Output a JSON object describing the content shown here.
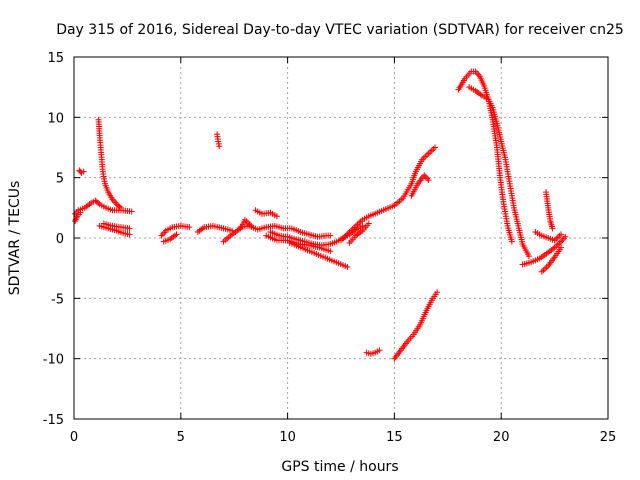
{
  "chart_data": {
    "type": "scatter",
    "title": "Day 315 of 2016, Sidereal Day-to-day VTEC variation (SDTVAR) for receiver cn25",
    "xlabel": "GPS time / hours",
    "ylabel": "SDTVAR / TECUs",
    "xlim": [
      0,
      25
    ],
    "ylim": [
      -15,
      15
    ],
    "xticks": [
      0,
      5,
      10,
      15,
      20,
      25
    ],
    "yticks": [
      -15,
      -10,
      -5,
      0,
      5,
      10,
      15
    ],
    "xtick_labels": [
      "0",
      "5",
      "10",
      "15",
      "20",
      "25"
    ],
    "ytick_labels": [
      "-15",
      "-10",
      "-5",
      "0",
      "5",
      "10",
      "15"
    ],
    "grid": true,
    "marker": "+",
    "color": "#ff0000",
    "segments": [
      {
        "x": [
          0.05,
          0.2,
          0.5,
          0.8,
          1.0,
          1.2,
          1.5,
          1.8,
          2.2,
          2.7
        ],
        "y": [
          2.0,
          2.3,
          2.5,
          2.9,
          3.1,
          2.8,
          2.5,
          2.3,
          2.3,
          2.2
        ]
      },
      {
        "x": [
          0.05,
          0.15,
          0.3
        ],
        "y": [
          1.4,
          1.8,
          2.1
        ]
      },
      {
        "x": [
          0.25,
          0.35,
          0.45
        ],
        "y": [
          5.6,
          5.4,
          5.5
        ]
      },
      {
        "x": [
          1.15,
          1.2,
          1.25,
          1.3,
          1.35,
          1.45,
          1.6,
          1.8,
          2.0,
          2.2
        ],
        "y": [
          9.8,
          8.5,
          7.5,
          6.5,
          5.5,
          4.5,
          3.8,
          3.2,
          2.8,
          2.5
        ]
      },
      {
        "x": [
          1.2,
          1.4,
          1.6,
          1.8,
          2.0,
          2.3,
          2.6
        ],
        "y": [
          1.0,
          0.9,
          0.8,
          0.7,
          0.6,
          0.4,
          0.3
        ]
      },
      {
        "x": [
          1.4,
          1.8,
          2.2,
          2.6
        ],
        "y": [
          1.2,
          1.0,
          0.9,
          0.8
        ]
      },
      {
        "x": [
          4.1,
          4.3,
          4.6,
          5.0,
          5.4
        ],
        "y": [
          0.2,
          0.6,
          0.9,
          1.0,
          0.9
        ]
      },
      {
        "x": [
          4.2,
          4.5,
          4.8
        ],
        "y": [
          -0.3,
          -0.1,
          0.3
        ]
      },
      {
        "x": [
          5.8,
          6.1,
          6.5,
          7.0,
          7.4
        ],
        "y": [
          0.5,
          0.9,
          1.0,
          0.8,
          0.6
        ]
      },
      {
        "x": [
          6.7,
          6.75,
          6.8
        ],
        "y": [
          8.6,
          8.0,
          7.6
        ]
      },
      {
        "x": [
          7.0,
          7.4,
          7.8,
          8.0,
          8.3
        ],
        "y": [
          -0.3,
          0.3,
          0.8,
          1.5,
          1.0
        ]
      },
      {
        "x": [
          7.8,
          8.2,
          8.6,
          9.0,
          9.4,
          9.8,
          10.2,
          10.6,
          11.0,
          11.4,
          11.8,
          12.0
        ],
        "y": [
          0.9,
          1.0,
          0.7,
          0.9,
          1.0,
          0.8,
          0.8,
          0.5,
          0.3,
          0.1,
          0.2,
          0.2
        ]
      },
      {
        "x": [
          9.2,
          9.6,
          10.0,
          10.4,
          10.8,
          11.2,
          11.6,
          12.0,
          12.3,
          12.6,
          12.9,
          13.2,
          13.5
        ],
        "y": [
          0.5,
          0.2,
          0.1,
          -0.1,
          -0.3,
          -0.5,
          -0.6,
          -0.5,
          -0.3,
          0.0,
          0.3,
          0.7,
          1.0
        ]
      },
      {
        "x": [
          9.0,
          9.5,
          10.0,
          10.5,
          11.0,
          11.5,
          12.0
        ],
        "y": [
          0.2,
          -0.2,
          -0.2,
          -0.5,
          -0.6,
          -0.8,
          -1.1
        ]
      },
      {
        "x": [
          8.5,
          8.8,
          9.2,
          9.5
        ],
        "y": [
          2.3,
          2.0,
          2.1,
          1.8
        ]
      },
      {
        "x": [
          10.1,
          12.8
        ],
        "y": [
          -0.4,
          -2.4
        ]
      },
      {
        "x": [
          12.5,
          12.9,
          13.2,
          13.5,
          13.8,
          14.2,
          14.6,
          15.0,
          15.4,
          15.8,
          16.0,
          16.3,
          16.6,
          16.9
        ],
        "y": [
          -0.2,
          0.5,
          1.0,
          1.5,
          1.8,
          2.1,
          2.4,
          2.7,
          3.3,
          4.5,
          5.5,
          6.5,
          7.0,
          7.5
        ]
      },
      {
        "x": [
          12.9,
          13.2,
          13.5,
          13.8
        ],
        "y": [
          -0.4,
          0.2,
          0.6,
          1.2
        ]
      },
      {
        "x": [
          15.8,
          16.1,
          16.4,
          16.6
        ],
        "y": [
          3.5,
          4.5,
          5.2,
          4.8
        ]
      },
      {
        "x": [
          13.7,
          13.9,
          14.1,
          14.3
        ],
        "y": [
          -9.5,
          -9.6,
          -9.5,
          -9.3
        ]
      },
      {
        "x": [
          15.0,
          15.3,
          15.6,
          15.9,
          16.2,
          16.5,
          16.8,
          17.0
        ],
        "y": [
          -10.0,
          -9.3,
          -8.6,
          -8.0,
          -7.2,
          -6.0,
          -5.0,
          -4.5
        ]
      },
      {
        "x": [
          18.0,
          18.3,
          18.6,
          18.8,
          19.0,
          19.2,
          19.4,
          19.6,
          19.8,
          19.95,
          20.1,
          20.3,
          20.5
        ],
        "y": [
          12.3,
          13.2,
          13.8,
          13.8,
          13.4,
          12.6,
          11.5,
          9.8,
          7.5,
          5.0,
          3.0,
          1.0,
          -0.3
        ]
      },
      {
        "x": [
          18.5,
          18.8,
          19.1,
          19.4,
          19.6,
          19.8,
          20.0,
          20.2,
          20.4,
          20.6,
          20.8,
          21.0,
          21.3
        ],
        "y": [
          12.5,
          12.2,
          11.8,
          11.5,
          10.8,
          9.5,
          8.0,
          6.5,
          4.5,
          2.5,
          1.0,
          -0.5,
          -1.5
        ]
      },
      {
        "x": [
          21.0,
          21.4,
          21.8,
          22.2,
          22.5,
          22.8,
          23.0
        ],
        "y": [
          -2.2,
          -2.0,
          -1.7,
          -1.2,
          -0.8,
          -0.3,
          0.1
        ]
      },
      {
        "x": [
          21.9,
          22.2,
          22.5,
          22.8
        ],
        "y": [
          -2.8,
          -2.3,
          -1.6,
          -0.8
        ]
      },
      {
        "x": [
          21.6,
          21.9,
          22.2,
          22.5,
          22.8
        ],
        "y": [
          0.5,
          0.2,
          0.0,
          -0.2,
          0.3
        ]
      },
      {
        "x": [
          22.1,
          22.2,
          22.3,
          22.4
        ],
        "y": [
          3.8,
          2.5,
          1.4,
          0.8
        ]
      }
    ]
  }
}
